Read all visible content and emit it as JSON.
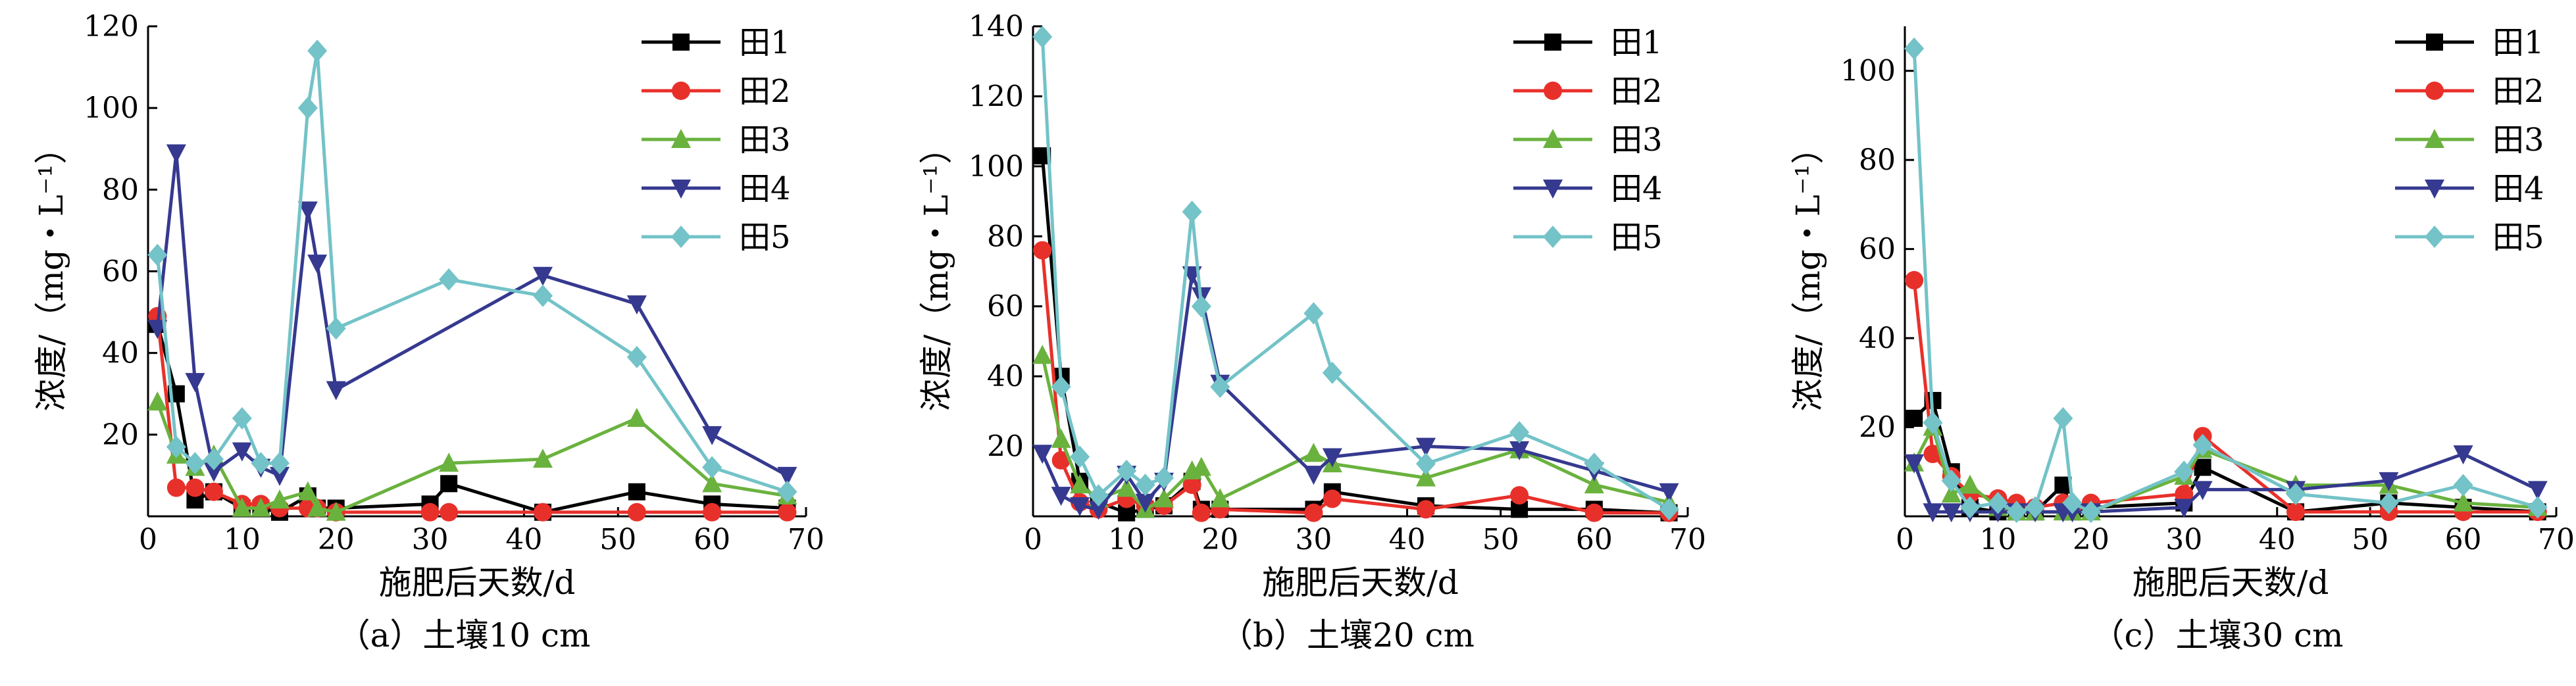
{
  "chart_data": [
    {
      "type": "line",
      "caption": "（a）土壤10 cm",
      "xlabel": "施肥后天数/d",
      "ylabel": "浓度/（mg・L⁻¹）",
      "xlim": [
        0,
        70
      ],
      "ylim": [
        0,
        120
      ],
      "xticks": [
        0,
        10,
        20,
        30,
        40,
        50,
        60,
        70
      ],
      "yticks": [
        20,
        40,
        60,
        80,
        100,
        120
      ],
      "legend_position": "top-right",
      "series": [
        {
          "name": "田1",
          "color": "#000000",
          "marker": "square",
          "x": [
            1,
            3,
            5,
            7,
            10,
            12,
            14,
            17,
            18,
            20,
            30,
            32,
            42,
            52,
            60,
            68
          ],
          "y": [
            47,
            30,
            4,
            6,
            2,
            2,
            1,
            5,
            2,
            2,
            3,
            8,
            1,
            6,
            3,
            2
          ]
        },
        {
          "name": "田2",
          "color": "#e8302a",
          "marker": "circle",
          "x": [
            1,
            3,
            5,
            7,
            10,
            12,
            14,
            17,
            18,
            20,
            30,
            32,
            42,
            52,
            60,
            68
          ],
          "y": [
            49,
            7,
            7,
            6,
            3,
            3,
            2,
            2,
            2,
            1,
            1,
            1,
            1,
            1,
            1,
            1
          ]
        },
        {
          "name": "田3",
          "color": "#6ab23e",
          "marker": "triangle-up",
          "x": [
            1,
            3,
            5,
            7,
            10,
            12,
            14,
            17,
            18,
            20,
            32,
            42,
            52,
            60,
            68
          ],
          "y": [
            28,
            15,
            12,
            15,
            2,
            2,
            4,
            6,
            2,
            1,
            13,
            14,
            24,
            8,
            5
          ]
        },
        {
          "name": "田4",
          "color": "#35398f",
          "marker": "triangle-down",
          "x": [
            1,
            3,
            5,
            7,
            10,
            12,
            14,
            17,
            18,
            20,
            42,
            52,
            60,
            68
          ],
          "y": [
            46,
            89,
            33,
            11,
            16,
            12,
            10,
            75,
            62,
            31,
            59,
            52,
            20,
            10
          ]
        },
        {
          "name": "田5",
          "color": "#73c3c8",
          "marker": "diamond",
          "x": [
            1,
            3,
            5,
            7,
            10,
            12,
            14,
            17,
            18,
            20,
            32,
            42,
            52,
            60,
            68
          ],
          "y": [
            64,
            17,
            13,
            14,
            24,
            13,
            13,
            100,
            114,
            46,
            58,
            54,
            39,
            12,
            6
          ]
        }
      ]
    },
    {
      "type": "line",
      "caption": "（b）土壤20 cm",
      "xlabel": "施肥后天数/d",
      "ylabel": "浓度/（mg・L⁻¹）",
      "xlim": [
        0,
        70
      ],
      "ylim": [
        0,
        140
      ],
      "xticks": [
        0,
        10,
        20,
        30,
        40,
        50,
        60,
        70
      ],
      "yticks": [
        20,
        40,
        60,
        80,
        100,
        120,
        140
      ],
      "legend_position": "top-right",
      "series": [
        {
          "name": "田1",
          "color": "#000000",
          "marker": "square",
          "x": [
            1,
            3,
            5,
            7,
            10,
            12,
            14,
            17,
            18,
            20,
            30,
            32,
            42,
            52,
            60,
            68
          ],
          "y": [
            103,
            40,
            10,
            4,
            1,
            2,
            3,
            10,
            2,
            2,
            2,
            7,
            3,
            2,
            2,
            1
          ]
        },
        {
          "name": "田2",
          "color": "#e8302a",
          "marker": "circle",
          "x": [
            1,
            3,
            5,
            7,
            10,
            12,
            14,
            17,
            18,
            20,
            30,
            32,
            42,
            52,
            60,
            68
          ],
          "y": [
            76,
            16,
            4,
            2,
            5,
            3,
            3,
            9,
            1,
            2,
            1,
            5,
            2,
            6,
            1,
            1
          ]
        },
        {
          "name": "田3",
          "color": "#6ab23e",
          "marker": "triangle-up",
          "x": [
            1,
            3,
            5,
            7,
            10,
            12,
            14,
            17,
            18,
            20,
            30,
            32,
            42,
            52,
            60,
            68
          ],
          "y": [
            46,
            22,
            9,
            5,
            8,
            2,
            5,
            13,
            14,
            5,
            18,
            15,
            11,
            19,
            9,
            4
          ]
        },
        {
          "name": "田4",
          "color": "#35398f",
          "marker": "triangle-down",
          "x": [
            1,
            3,
            5,
            7,
            10,
            12,
            14,
            17,
            18,
            20,
            30,
            32,
            42,
            52,
            60,
            68
          ],
          "y": [
            18,
            6,
            3,
            2,
            12,
            4,
            10,
            69,
            63,
            38,
            12,
            17,
            20,
            19,
            13,
            7
          ]
        },
        {
          "name": "田5",
          "color": "#73c3c8",
          "marker": "diamond",
          "x": [
            1,
            3,
            5,
            7,
            10,
            12,
            14,
            17,
            18,
            20,
            30,
            32,
            42,
            52,
            60,
            68
          ],
          "y": [
            137,
            37,
            17,
            6,
            13,
            9,
            11,
            87,
            60,
            37,
            58,
            41,
            15,
            24,
            15,
            2
          ]
        }
      ]
    },
    {
      "type": "line",
      "caption": "（c）土壤30 cm",
      "xlabel": "施肥后天数/d",
      "ylabel": "浓度/（mg・L⁻¹）",
      "xlim": [
        0,
        70
      ],
      "ylim": [
        0,
        110
      ],
      "xticks": [
        0,
        10,
        20,
        30,
        40,
        50,
        60,
        70
      ],
      "yticks": [
        20,
        40,
        60,
        80,
        100
      ],
      "legend_position": "top-right",
      "series": [
        {
          "name": "田1",
          "color": "#000000",
          "marker": "square",
          "x": [
            1,
            3,
            5,
            7,
            10,
            12,
            14,
            17,
            18,
            20,
            30,
            32,
            42,
            52,
            60,
            68
          ],
          "y": [
            22,
            26,
            10,
            2,
            1,
            1,
            1,
            7,
            1,
            2,
            3,
            11,
            1,
            3,
            2,
            1
          ]
        },
        {
          "name": "田2",
          "color": "#e8302a",
          "marker": "circle",
          "x": [
            1,
            3,
            5,
            7,
            10,
            12,
            14,
            17,
            18,
            20,
            30,
            32,
            42,
            52,
            60,
            68
          ],
          "y": [
            53,
            14,
            9,
            5,
            4,
            3,
            2,
            3,
            2,
            3,
            5,
            18,
            1,
            1,
            1,
            1
          ]
        },
        {
          "name": "田3",
          "color": "#6ab23e",
          "marker": "triangle-up",
          "x": [
            1,
            3,
            5,
            7,
            10,
            12,
            14,
            17,
            18,
            20,
            30,
            32,
            42,
            52,
            60,
            68
          ],
          "y": [
            12,
            20,
            5,
            7,
            2,
            1,
            1,
            1,
            1,
            1,
            9,
            15,
            7,
            7,
            3,
            2
          ]
        },
        {
          "name": "田4",
          "color": "#35398f",
          "marker": "triangle-down",
          "x": [
            1,
            3,
            5,
            7,
            10,
            12,
            14,
            17,
            18,
            20,
            30,
            32,
            42,
            52,
            60,
            68
          ],
          "y": [
            12,
            1,
            1,
            1,
            1,
            1,
            1,
            1,
            1,
            1,
            2,
            6,
            6,
            8,
            14,
            6
          ]
        },
        {
          "name": "田5",
          "color": "#73c3c8",
          "marker": "diamond",
          "x": [
            1,
            3,
            5,
            7,
            10,
            12,
            14,
            17,
            18,
            20,
            30,
            32,
            42,
            52,
            60,
            68
          ],
          "y": [
            105,
            21,
            8,
            2,
            3,
            1,
            2,
            22,
            3,
            1,
            10,
            16,
            5,
            3,
            7,
            2
          ]
        }
      ]
    }
  ]
}
